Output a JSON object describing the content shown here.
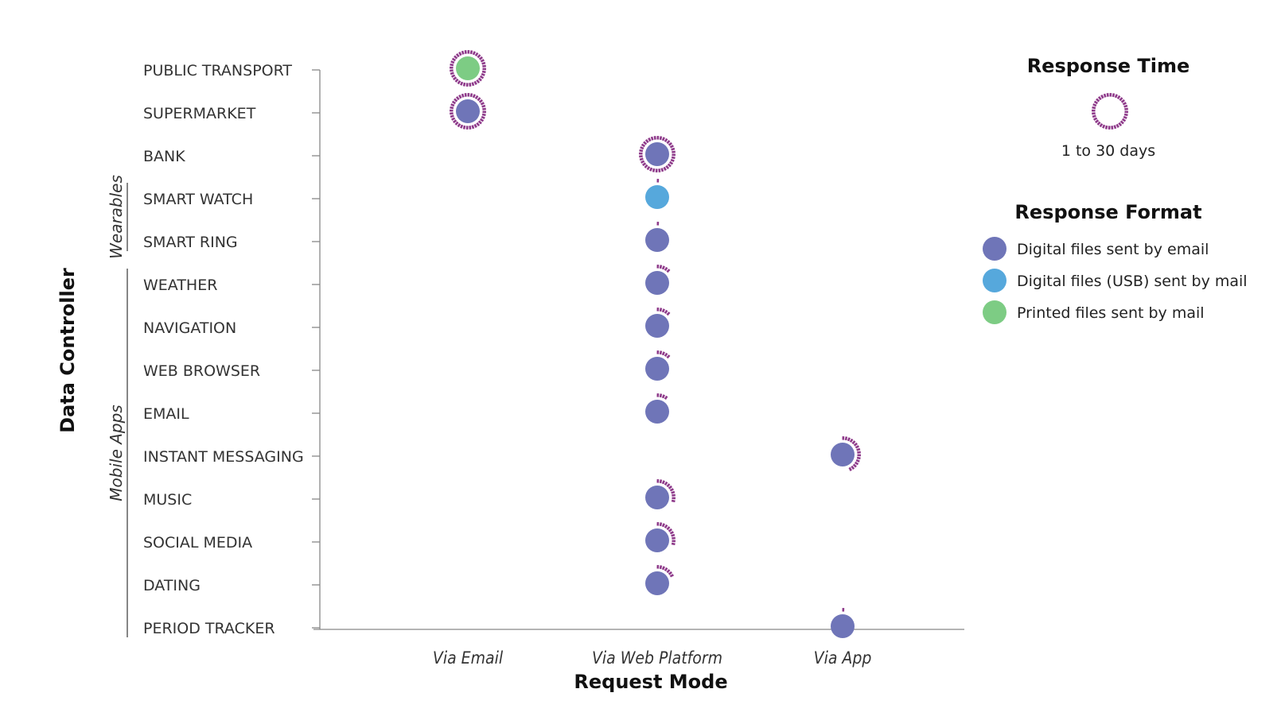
{
  "chart_data": {
    "type": "scatter",
    "xlabel": "Request Mode",
    "ylabel": "Data Controller",
    "x_categories": [
      "Via Email",
      "Via Web Platform",
      "Via App"
    ],
    "y_categories": [
      "PUBLIC TRANSPORT",
      "SUPERMARKET",
      "BANK",
      "SMART WATCH",
      "SMART RING",
      "WEATHER",
      "NAVIGATION",
      "WEB BROWSER",
      "EMAIL",
      "INSTANT MESSAGING",
      "MUSIC",
      "SOCIAL MEDIA",
      "DATING",
      "PERIOD TRACKER"
    ],
    "groups": [
      {
        "label": "Wearables",
        "from": "SMART WATCH",
        "to": "SMART RING"
      },
      {
        "label": "Mobile Apps",
        "from": "WEATHER",
        "to": "PERIOD TRACKER"
      }
    ],
    "response_time_max_days": 30,
    "points": [
      {
        "controller": "PUBLIC TRANSPORT",
        "mode": "Via Email",
        "format": "Printed files sent by mail",
        "response_days": 30
      },
      {
        "controller": "SUPERMARKET",
        "mode": "Via Email",
        "format": "Digital files sent by email",
        "response_days": 30
      },
      {
        "controller": "BANK",
        "mode": "Via Web Platform",
        "format": "Digital files sent by email",
        "response_days": 30
      },
      {
        "controller": "SMART WATCH",
        "mode": "Via Web Platform",
        "format": "Digital files (USB) sent by mail",
        "response_days": 1
      },
      {
        "controller": "SMART RING",
        "mode": "Via Web Platform",
        "format": "Digital files sent by email",
        "response_days": 1
      },
      {
        "controller": "WEATHER",
        "mode": "Via Web Platform",
        "format": "Digital files sent by email",
        "response_days": 4
      },
      {
        "controller": "NAVIGATION",
        "mode": "Via Web Platform",
        "format": "Digital files sent by email",
        "response_days": 4
      },
      {
        "controller": "WEB BROWSER",
        "mode": "Via Web Platform",
        "format": "Digital files sent by email",
        "response_days": 4
      },
      {
        "controller": "EMAIL",
        "mode": "Via Web Platform",
        "format": "Digital files sent by email",
        "response_days": 3
      },
      {
        "controller": "INSTANT MESSAGING",
        "mode": "Via App",
        "format": "Digital files sent by email",
        "response_days": 13
      },
      {
        "controller": "MUSIC",
        "mode": "Via Web Platform",
        "format": "Digital files sent by email",
        "response_days": 9
      },
      {
        "controller": "SOCIAL MEDIA",
        "mode": "Via Web Platform",
        "format": "Digital files sent by email",
        "response_days": 9
      },
      {
        "controller": "DATING",
        "mode": "Via Web Platform",
        "format": "Digital files sent by email",
        "response_days": 6
      },
      {
        "controller": "PERIOD TRACKER",
        "mode": "Via App",
        "format": "Digital files sent by email",
        "response_days": 1
      }
    ]
  },
  "legend": {
    "response_time": {
      "title": "Response Time",
      "range_label": "1 to 30 days"
    },
    "response_format": {
      "title": "Response Format",
      "items": [
        {
          "label": "Digital files sent by email",
          "color": "#6f75b8"
        },
        {
          "label": "Digital files (USB) sent by mail",
          "color": "#56a8dc"
        },
        {
          "label": "Printed files sent by mail",
          "color": "#7dcc84"
        }
      ]
    }
  },
  "colors": {
    "ring": "#8e3a8a",
    "axis": "#888888"
  }
}
